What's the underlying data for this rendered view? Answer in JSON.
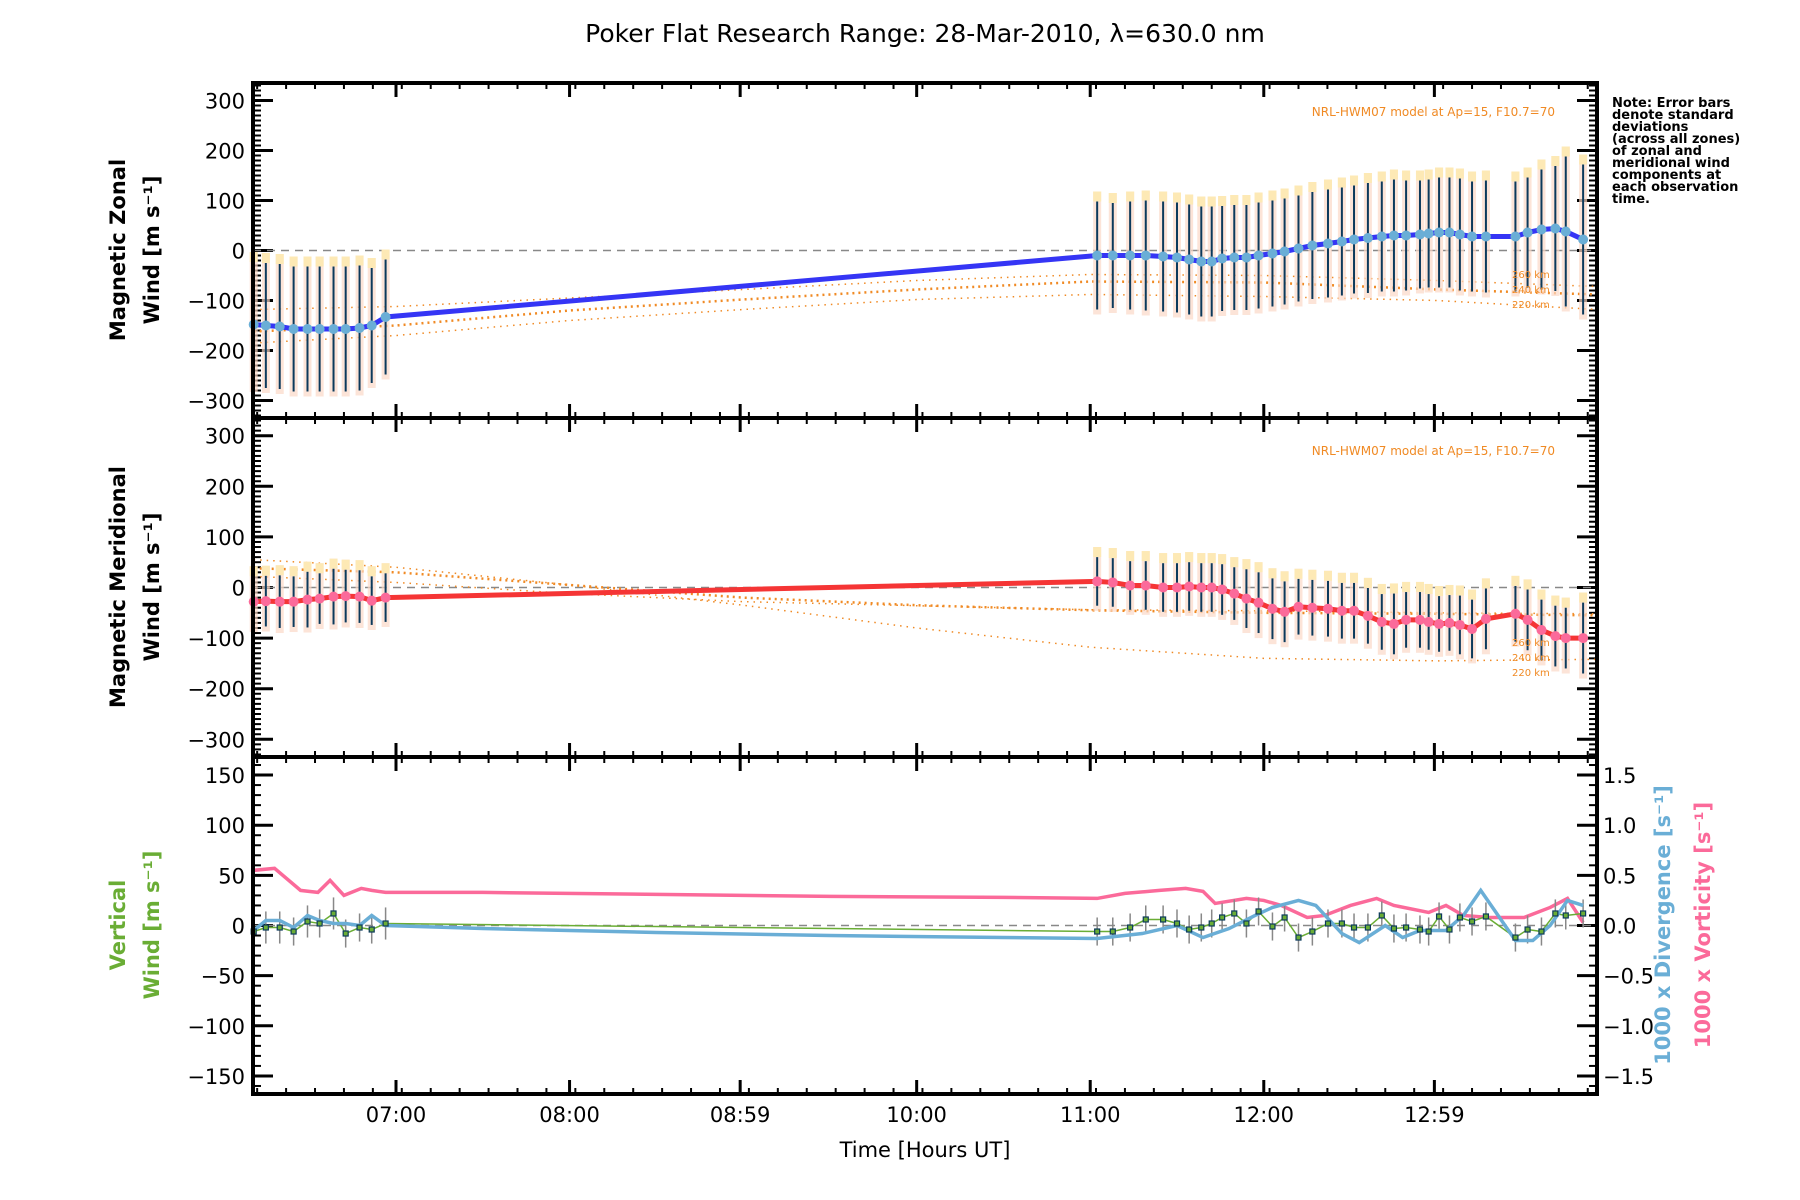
{
  "chart_data": [
    {
      "type": "line",
      "panel": "zonal",
      "title": "Poker Flat Research Range: 28-Mar-2010, λ=630.0 nm",
      "xlabel": "Time [Hours UT]",
      "ylabel": [
        "Magnetic Zonal",
        "Wind [m s⁻¹]"
      ],
      "ylim": [
        -335,
        335
      ],
      "yticks": [
        -300,
        -200,
        -100,
        0,
        100,
        200,
        300
      ],
      "annotation": "NRL-HWM07 model at Ap=15, F10.7=70",
      "color": "#3535f5",
      "series": [
        {
          "name": "Observed zonal wind",
          "x": [
            6.18,
            6.25,
            6.33,
            6.41,
            6.49,
            6.56,
            6.64,
            6.71,
            6.79,
            6.86,
            6.94,
            11.04,
            11.13,
            11.23,
            11.32,
            11.42,
            11.5,
            11.57,
            11.64,
            11.7,
            11.76,
            11.83,
            11.9,
            11.97,
            12.05,
            12.12,
            12.2,
            12.28,
            12.37,
            12.45,
            12.52,
            12.6,
            12.68,
            12.75,
            12.82,
            12.9,
            12.95,
            13.01,
            13.07,
            13.13,
            13.2,
            13.28,
            13.45,
            13.52,
            13.6,
            13.68,
            13.74,
            13.84
          ],
          "y": [
            -148,
            -150,
            -152,
            -157,
            -157,
            -157,
            -157,
            -157,
            -155,
            -150,
            -133,
            -10,
            -10,
            -10,
            -10,
            -12,
            -14,
            -18,
            -22,
            -22,
            -16,
            -14,
            -14,
            -10,
            -6,
            -2,
            4,
            10,
            14,
            18,
            22,
            25,
            28,
            30,
            30,
            32,
            34,
            36,
            36,
            32,
            28,
            28,
            28,
            36,
            42,
            44,
            38,
            22
          ],
          "error": [
            125,
            125,
            125,
            125,
            125,
            125,
            125,
            125,
            125,
            115,
            115,
            108,
            105,
            108,
            110,
            110,
            110,
            110,
            110,
            110,
            105,
            105,
            105,
            106,
            106,
            106,
            106,
            107,
            108,
            108,
            108,
            110,
            110,
            112,
            110,
            108,
            108,
            110,
            110,
            112,
            110,
            112,
            110,
            110,
            120,
            125,
            150,
            150
          ]
        },
        {
          "name": "HWM07 260 km",
          "x": [
            6.18,
            7.0,
            8.0,
            9.0,
            10.0,
            11.0,
            12.0,
            13.0,
            13.92
          ],
          "y": [
            -118,
            -112,
            -95,
            -78,
            -60,
            -48,
            -50,
            -60,
            -72
          ]
        },
        {
          "name": "HWM07 240 km",
          "x": [
            6.18,
            7.0,
            8.0,
            9.0,
            10.0,
            11.0,
            12.0,
            13.0,
            13.92
          ],
          "y": [
            -162,
            -150,
            -120,
            -98,
            -78,
            -62,
            -64,
            -78,
            -88
          ]
        },
        {
          "name": "HWM07 220 km",
          "x": [
            6.18,
            7.0,
            8.0,
            9.0,
            10.0,
            11.0,
            12.0,
            13.0,
            13.92
          ],
          "y": [
            -185,
            -170,
            -140,
            -118,
            -98,
            -88,
            -92,
            -100,
            -118
          ]
        }
      ],
      "model_labels": [
        "260 km",
        "240 km",
        "220 km"
      ]
    },
    {
      "type": "line",
      "panel": "meridional",
      "ylabel": [
        "Magnetic Meridional",
        "Wind [m s⁻¹]"
      ],
      "ylim": [
        -335,
        335
      ],
      "yticks": [
        -300,
        -200,
        -100,
        0,
        100,
        200,
        300
      ],
      "annotation": "NRL-HWM07 model at Ap=15, F10.7=70",
      "color": "#f53535",
      "series": [
        {
          "name": "Observed meridional wind",
          "x": [
            6.18,
            6.25,
            6.33,
            6.41,
            6.49,
            6.56,
            6.64,
            6.71,
            6.79,
            6.86,
            6.94,
            11.04,
            11.13,
            11.23,
            11.32,
            11.42,
            11.5,
            11.57,
            11.64,
            11.7,
            11.76,
            11.83,
            11.9,
            11.97,
            12.05,
            12.12,
            12.2,
            12.28,
            12.37,
            12.45,
            12.52,
            12.6,
            12.68,
            12.75,
            12.82,
            12.9,
            12.95,
            13.01,
            13.07,
            13.13,
            13.2,
            13.28,
            13.45,
            13.52,
            13.6,
            13.68,
            13.74,
            13.84
          ],
          "y": [
            -28,
            -27,
            -28,
            -28,
            -24,
            -22,
            -18,
            -17,
            -18,
            -26,
            -20,
            12,
            10,
            4,
            4,
            0,
            0,
            2,
            0,
            0,
            -4,
            -12,
            -22,
            -30,
            -42,
            -48,
            -38,
            -40,
            -42,
            -46,
            -46,
            -56,
            -68,
            -72,
            -64,
            -64,
            -68,
            -72,
            -70,
            -74,
            -82,
            -62,
            -52,
            -64,
            -84,
            -96,
            -100,
            -100
          ],
          "error": [
            50,
            50,
            52,
            50,
            55,
            50,
            55,
            52,
            52,
            48,
            48,
            48,
            48,
            48,
            48,
            48,
            48,
            48,
            48,
            48,
            50,
            52,
            58,
            60,
            60,
            60,
            55,
            55,
            55,
            55,
            55,
            55,
            55,
            60,
            55,
            55,
            55,
            55,
            55,
            58,
            58,
            60,
            55,
            60,
            60,
            60,
            60,
            70
          ]
        },
        {
          "name": "HWM07 260 km",
          "x": [
            6.18,
            7.0,
            8.0,
            9.0,
            10.0,
            11.0,
            12.0,
            13.0,
            13.92
          ],
          "y": [
            55,
            40,
            5,
            -35,
            -80,
            -118,
            -140,
            -145,
            -142
          ]
        },
        {
          "name": "HWM07 240 km",
          "x": [
            6.18,
            7.0,
            8.0,
            9.0,
            10.0,
            11.0,
            12.0,
            13.0,
            13.92
          ],
          "y": [
            38,
            30,
            5,
            -20,
            -35,
            -45,
            -50,
            -52,
            -55
          ]
        },
        {
          "name": "HWM07 220 km",
          "x": [
            6.18,
            7.0,
            8.0,
            9.0,
            10.0,
            11.0,
            12.0,
            13.0,
            13.92
          ],
          "y": [
            22,
            10,
            -12,
            -28,
            -36,
            -44,
            -46,
            -50,
            -52
          ]
        }
      ],
      "model_labels": [
        "260 km",
        "240 km",
        "220 km"
      ]
    },
    {
      "type": "line",
      "panel": "vertical",
      "ylabel": [
        "Vertical",
        "Wind [m s⁻¹]"
      ],
      "ylim": [
        -168,
        168
      ],
      "yticks": [
        -150,
        -100,
        -50,
        0,
        50,
        100,
        150
      ],
      "y2label_divergence": "1000 x Divergence [s⁻¹]",
      "y2label_vorticity": "1000 x Vorticity [s⁻¹]",
      "y2lim": [
        -1.68,
        1.68
      ],
      "y2ticks": [
        -1.5,
        -1.0,
        -0.5,
        0.0,
        0.5,
        1.0,
        1.5
      ],
      "xticks": [
        7.0,
        8.0,
        8.983,
        10.0,
        11.0,
        12.0,
        12.983
      ],
      "xtick_labels": [
        "07:00",
        "08:00",
        "08:59",
        "10:00",
        "11:00",
        "12:00",
        "12:59"
      ],
      "xlim": [
        6.176,
        13.92
      ],
      "series": [
        {
          "name": "Vertical wind",
          "color": "#6aad35",
          "axis": "left",
          "x": [
            6.18,
            6.25,
            6.33,
            6.41,
            6.49,
            6.56,
            6.64,
            6.71,
            6.79,
            6.86,
            6.94,
            11.04,
            11.13,
            11.23,
            11.32,
            11.42,
            11.5,
            11.57,
            11.64,
            11.7,
            11.76,
            11.83,
            11.9,
            11.97,
            12.05,
            12.12,
            12.2,
            12.28,
            12.37,
            12.45,
            12.52,
            12.6,
            12.68,
            12.75,
            12.82,
            12.9,
            12.95,
            13.01,
            13.07,
            13.13,
            13.2,
            13.28,
            13.45,
            13.52,
            13.6,
            13.68,
            13.74,
            13.84
          ],
          "y": [
            -6,
            -2,
            -2,
            -6,
            4,
            2,
            12,
            -8,
            -2,
            -4,
            2,
            -6,
            -6,
            -2,
            6,
            6,
            2,
            -4,
            -2,
            2,
            8,
            12,
            2,
            14,
            -1,
            8,
            -12,
            -6,
            2,
            2,
            -2,
            -2,
            10,
            -3,
            -2,
            -4,
            -6,
            9,
            -4,
            8,
            4,
            9,
            -12,
            -4,
            -6,
            12,
            10,
            12
          ],
          "error": [
            16,
            16,
            16,
            14,
            16,
            14,
            16,
            14,
            14,
            14,
            16,
            14,
            14,
            14,
            14,
            14,
            14,
            14,
            14,
            14,
            14,
            14,
            14,
            14,
            14,
            14,
            14,
            14,
            14,
            14,
            14,
            14,
            14,
            14,
            14,
            14,
            14,
            14,
            14,
            14,
            14,
            14,
            14,
            14,
            14,
            14,
            14,
            14
          ]
        },
        {
          "name": "1000 x Divergence",
          "color": "#6aaed6",
          "axis": "right",
          "x": [
            6.18,
            6.25,
            6.33,
            6.41,
            6.49,
            6.56,
            6.64,
            6.71,
            6.79,
            6.86,
            6.94,
            7.5,
            8.5,
            9.5,
            10.5,
            11.04,
            11.3,
            11.5,
            11.65,
            11.8,
            11.95,
            12.05,
            12.2,
            12.3,
            12.45,
            12.55,
            12.7,
            12.8,
            12.9,
            13.05,
            13.15,
            13.25,
            13.45,
            13.55,
            13.65,
            13.75,
            13.84
          ],
          "y": [
            -0.05,
            0.05,
            0.05,
            -0.02,
            0.1,
            0.05,
            0.02,
            0.02,
            0.0,
            0.1,
            0.0,
            -0.03,
            -0.07,
            -0.1,
            -0.12,
            -0.13,
            -0.08,
            0.0,
            -0.12,
            -0.03,
            0.1,
            0.18,
            0.25,
            0.2,
            -0.08,
            -0.17,
            0.0,
            -0.12,
            -0.05,
            -0.05,
            0.1,
            0.35,
            -0.15,
            -0.15,
            0.0,
            0.25,
            0.2
          ],
          "error": []
        },
        {
          "name": "1000 x Vorticity",
          "color": "#fb6a9a",
          "axis": "right",
          "x": [
            6.18,
            6.3,
            6.45,
            6.55,
            6.62,
            6.7,
            6.8,
            6.86,
            6.94,
            7.5,
            8.5,
            9.5,
            10.5,
            11.04,
            11.2,
            11.4,
            11.55,
            11.65,
            11.72,
            11.9,
            12.0,
            12.1,
            12.25,
            12.35,
            12.5,
            12.65,
            12.75,
            12.95,
            13.05,
            13.15,
            13.3,
            13.5,
            13.65,
            13.75,
            13.84
          ],
          "y": [
            0.55,
            0.57,
            0.35,
            0.33,
            0.45,
            0.3,
            0.37,
            0.35,
            0.33,
            0.33,
            0.31,
            0.29,
            0.28,
            0.27,
            0.32,
            0.35,
            0.37,
            0.34,
            0.22,
            0.27,
            0.25,
            0.2,
            0.08,
            0.1,
            0.2,
            0.27,
            0.2,
            0.13,
            0.2,
            0.1,
            0.08,
            0.08,
            0.18,
            0.27,
            0.03
          ],
          "error": []
        }
      ]
    }
  ],
  "notes": {
    "lines": [
      "Note: Error bars",
      "denote standard",
      "deviations",
      "(across all zones)",
      "of zonal and",
      "meridional wind",
      "components at",
      "each observation",
      "time."
    ]
  },
  "colors": {
    "zonal": "#3535f5",
    "zonal_points": "#6aaed6",
    "meridional": "#f53535",
    "meridional_points": "#fb6a9a",
    "model": "#f08a24",
    "errorbar": "#0c3a5c",
    "vertical": "#6aad35",
    "divergence": "#6aaed6",
    "vorticity": "#fb6a9a",
    "zero_line": "#888888"
  }
}
